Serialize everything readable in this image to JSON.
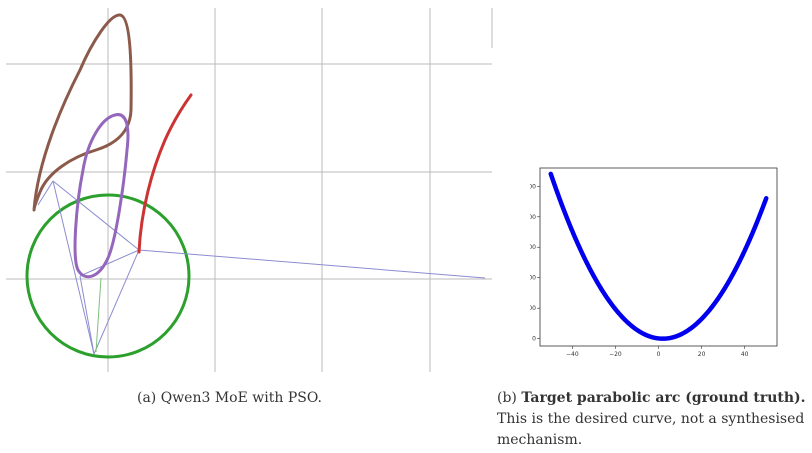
{
  "figure_a": {
    "caption": "(a) Qwen3 MoE with PSO.",
    "colors": {
      "grid": "#bbbbbb",
      "brown_curve": "#8b5a4a",
      "purple_curve": "#9467bd",
      "red_curve": "#cc3333",
      "green_circle": "#2ca02c",
      "linkage": "#8c8cd0"
    }
  },
  "figure_b": {
    "caption_label": "(b)",
    "caption_bold": "Target parabolic arc (ground truth).",
    "caption_rest": "This is the desired curve, not a synthesised mechanism."
  },
  "chart_data": {
    "type": "scatter",
    "title": "",
    "xlabel": "",
    "ylabel": "",
    "x_ticks": [
      -40,
      -20,
      0,
      20,
      40
    ],
    "y_ticks": [
      0,
      500,
      1000,
      1500,
      2000,
      2500
    ],
    "xlim": [
      -55,
      55
    ],
    "ylim": [
      -120,
      2800
    ],
    "series_color": "#0000ee",
    "x_range_of_curve": [
      -50,
      50
    ],
    "equation": "y = (x - 2)^2",
    "grid": false
  }
}
